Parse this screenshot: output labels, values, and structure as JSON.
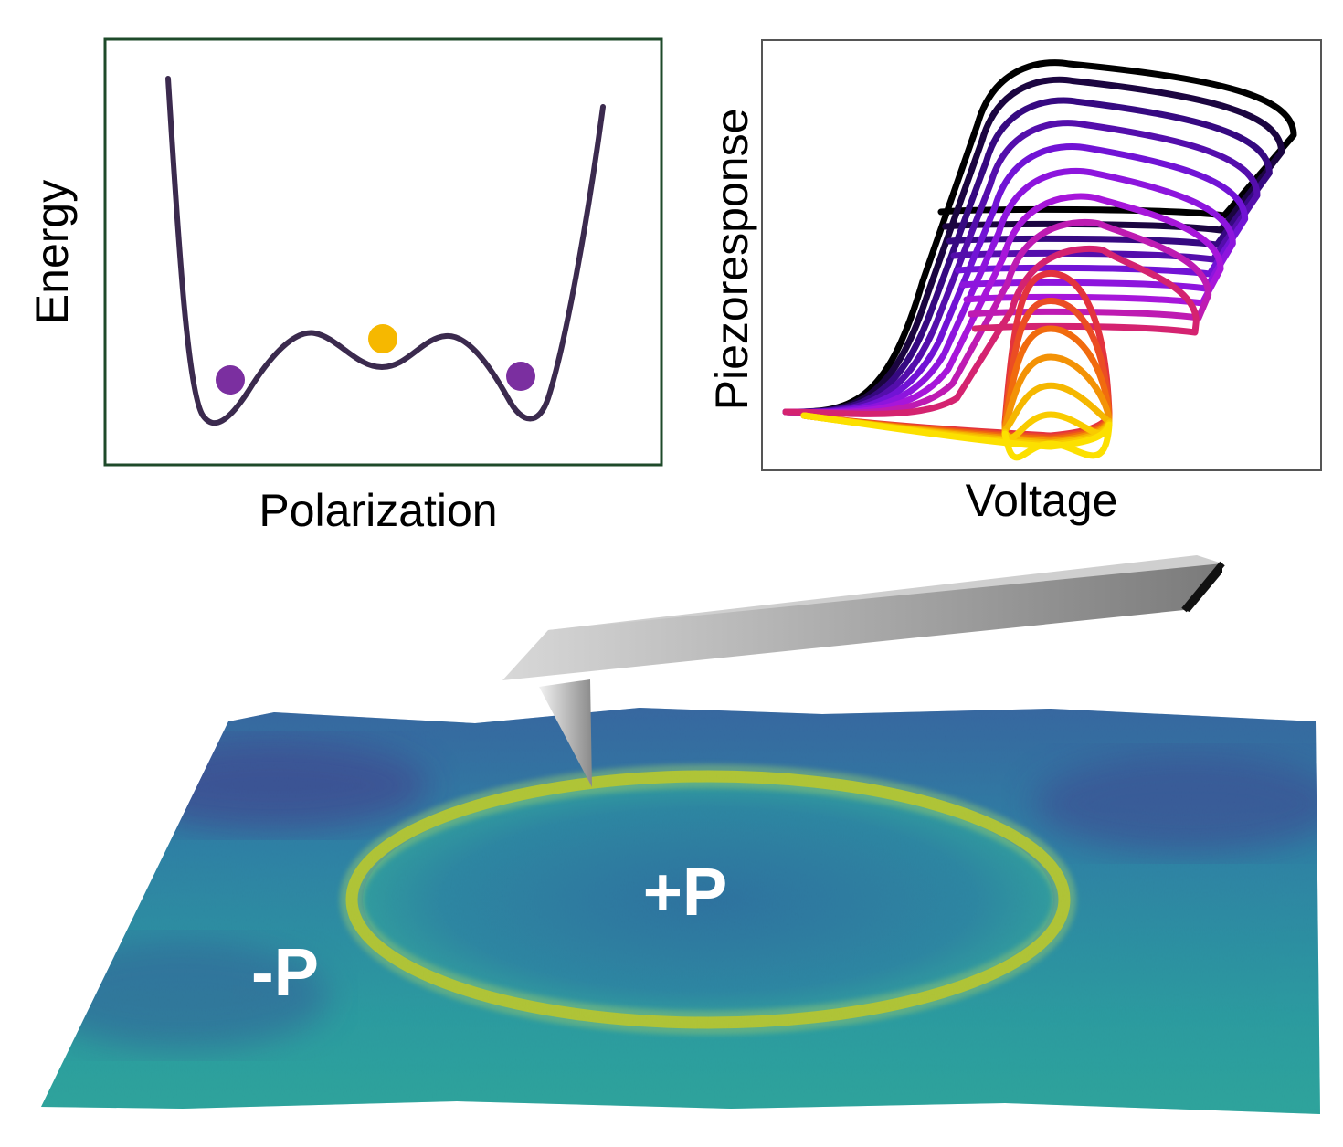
{
  "energy_panel": {
    "ylabel": "Energy",
    "xlabel": "Polarization",
    "frame_color": "#1e4a2a",
    "curve_color": "#3b2a4e",
    "minima_ball_color": "#7b2fa0",
    "saddle_ball_color": "#f6b800"
  },
  "hysteresis_panel": {
    "ylabel": "Piezoresponse",
    "xlabel": "Voltage",
    "loop_count": 16,
    "colormap": [
      "#000000",
      "#3a0a8a",
      "#7a14e0",
      "#b216d8",
      "#e0284a",
      "#f06010",
      "#f5b400",
      "#fce000"
    ]
  },
  "pfm_surface": {
    "inner_domain_label": "+P",
    "outer_domain_label": "-P",
    "surface_colors": [
      "#3a3a8c",
      "#2d6aa0",
      "#2aa3a0",
      "#f5e500"
    ],
    "cantilever_color": "#9a9a9a"
  }
}
